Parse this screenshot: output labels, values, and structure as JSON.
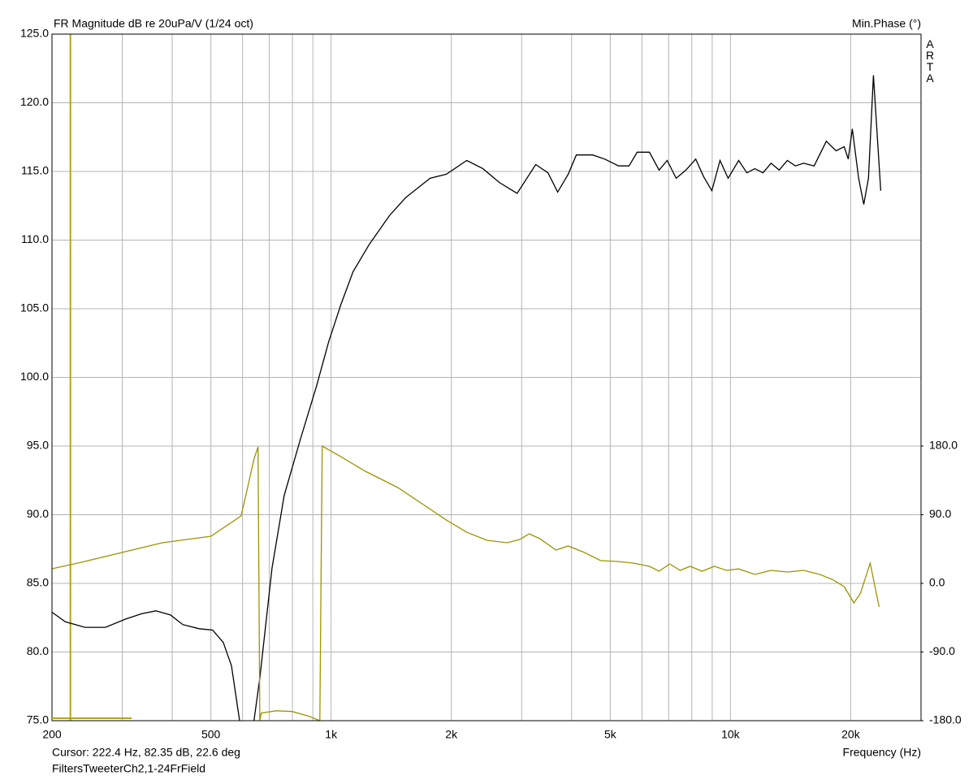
{
  "chart_data": {
    "type": "line",
    "title": "FR Magnitude dB re 20uPa/V (1/24 oct)",
    "y2_label": "Min.Phase (°)",
    "x_label": "Frequency (Hz)",
    "brand": "ARTA",
    "cursor_text": "Cursor: 222.4 Hz, 82.35 dB, 22.6 deg",
    "file_name": "FiltersTweeterCh2,1-24FrField",
    "cursor_x": 222.4,
    "cursor_color": "#b3a600",
    "x_scale": "log",
    "grid": true,
    "xlim": [
      200,
      30000
    ],
    "xticks": [
      200,
      500,
      {
        "value": 1000,
        "label": "1k"
      },
      {
        "value": 2000,
        "label": "2k"
      },
      {
        "value": 5000,
        "label": "5k"
      },
      {
        "value": 10000,
        "label": "10k"
      },
      {
        "value": 20000,
        "label": "20k"
      }
    ],
    "xminor": [
      300,
      400,
      600,
      700,
      800,
      900,
      3000,
      4000,
      6000,
      7000,
      8000,
      9000
    ],
    "ylim": [
      75,
      125
    ],
    "yticks": [
      {
        "value": 75,
        "label": "75.0"
      },
      {
        "value": 80,
        "label": "80.0"
      },
      {
        "value": 85,
        "label": "85.0"
      },
      {
        "value": 90,
        "label": "90.0"
      },
      {
        "value": 95,
        "label": "95.0"
      },
      {
        "value": 100,
        "label": "100.0"
      },
      {
        "value": 105,
        "label": "105.0"
      },
      {
        "value": 110,
        "label": "110.0"
      },
      {
        "value": 115,
        "label": "115.0"
      },
      {
        "value": 120,
        "label": "120.0"
      },
      {
        "value": 125,
        "label": "125.0"
      }
    ],
    "y2lim": [
      -180,
      720
    ],
    "y2ticks": [
      {
        "value": -180,
        "label": "-180.0"
      },
      {
        "value": -90,
        "label": "-90.0"
      },
      {
        "value": 0,
        "label": "0.0"
      },
      {
        "value": 90,
        "label": "90.0"
      },
      {
        "value": 180,
        "label": "180.0"
      }
    ],
    "series": [
      {
        "name": "Magnitude",
        "color": "#000000",
        "x": [
          200,
          216,
          242,
          272,
          306,
          336,
          364,
          396,
          425,
          467,
          505,
          537,
          563,
          590,
          615,
          641,
          663,
          711,
          763,
          838,
          920,
          986,
          1058,
          1135,
          1247,
          1401,
          1538,
          1770,
          1944,
          2186,
          2400,
          2636,
          2922,
          3254,
          3491,
          3692,
          3924,
          4112,
          4516,
          4844,
          5245,
          5572,
          5839,
          6266,
          6627,
          6945,
          7311,
          7736,
          8183,
          8574,
          8984,
          9413,
          9863,
          10486,
          10990,
          11510,
          12060,
          12640,
          13240,
          13880,
          14540,
          15240,
          16200,
          17380,
          18380,
          19260,
          19720,
          20190,
          20940,
          21560,
          22160,
          22800,
          23780
        ],
        "values": [
          82.9,
          82.2,
          81.8,
          81.8,
          82.4,
          82.8,
          83.0,
          82.7,
          82.0,
          81.7,
          81.6,
          80.7,
          79.0,
          75,
          null,
          75,
          78.1,
          86.1,
          91.4,
          95.5,
          99.4,
          102.6,
          105.3,
          107.7,
          109.7,
          111.8,
          113.1,
          114.5,
          114.8,
          115.8,
          115.2,
          114.2,
          113.4,
          115.5,
          114.9,
          113.5,
          114.8,
          116.2,
          116.2,
          115.9,
          115.4,
          115.4,
          116.4,
          116.4,
          115.1,
          115.8,
          114.5,
          115.1,
          115.9,
          114.6,
          113.6,
          115.8,
          114.5,
          115.8,
          114.9,
          115.2,
          114.9,
          115.6,
          115.1,
          115.8,
          115.4,
          115.6,
          115.4,
          117.2,
          116.5,
          116.8,
          115.9,
          118.1,
          114.5,
          112.6,
          114.5,
          122.0,
          113.6
        ]
      },
      {
        "name": "Min.Phase",
        "color": "#9b9400",
        "axis": "y2",
        "x": [
          200,
          237,
          299,
          378,
          500,
          595,
          618,
          641,
          656,
          663,
          669,
          728,
          799,
          878,
          937,
          950,
          1058,
          1218,
          1468,
          1690,
          1944,
          2186,
          2458,
          2762,
          2964,
          3134,
          3332,
          3658,
          3924,
          4308,
          4732,
          5196,
          5706,
          6266,
          6627,
          7046,
          7484,
          7920,
          8494,
          9112,
          9774,
          10486,
          11510,
          12640,
          13880,
          15240,
          16740,
          17960,
          19260,
          20380,
          21160,
          22380,
          23560
        ],
        "values": [
          19.2,
          27.7,
          40.5,
          53.3,
          61.8,
          88.4,
          125.7,
          163,
          179,
          -180,
          -170,
          -167,
          -168,
          -174,
          -180,
          180,
          166,
          147,
          125.7,
          104.4,
          83,
          67,
          56.4,
          53.3,
          57.5,
          65,
          58.6,
          43.7,
          49,
          40.5,
          29.8,
          28.8,
          26.6,
          22.4,
          16,
          25.5,
          17,
          22.4,
          16,
          22.4,
          17,
          19,
          11.7,
          17,
          14.9,
          17,
          11.7,
          5.3,
          -4.3,
          -25.6,
          -12.8,
          26.6,
          -30.9
        ]
      }
    ]
  }
}
